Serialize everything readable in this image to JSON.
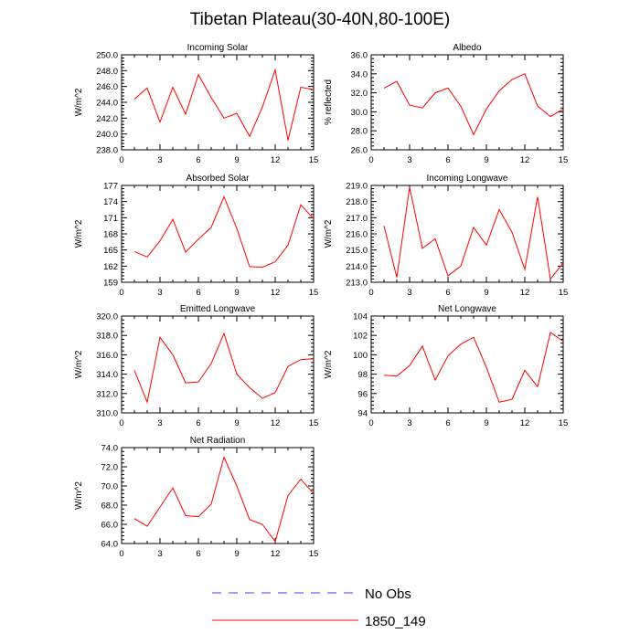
{
  "figure": {
    "title": "Tibetan Plateau(30-40N,80-100E)",
    "line_color": "#ff0000",
    "obs_color": "#3b3bff",
    "legend": [
      {
        "label": "No Obs",
        "style": "dashed"
      },
      {
        "label": "1850_149",
        "style": "solid"
      }
    ]
  },
  "chart_data": [
    {
      "type": "line",
      "title": "Incoming Solar",
      "xlabel": "",
      "ylabel": "W/m^2",
      "xlim": [
        0,
        15
      ],
      "ylim": [
        238,
        250
      ],
      "xticks": [
        0,
        3,
        6,
        9,
        12,
        15
      ],
      "xtick_labels": [
        "0",
        "3",
        "6",
        "9",
        "12",
        "15"
      ],
      "yticks": [
        238,
        240,
        242,
        244,
        246,
        248,
        250
      ],
      "ytick_labels": [
        "238.0",
        "240.0",
        "242.0",
        "244.0",
        "246.0",
        "248.0",
        "250.0"
      ],
      "series": [
        {
          "name": "1850_149",
          "x": [
            1,
            2,
            3,
            4,
            5,
            6,
            7,
            8,
            9,
            10,
            11,
            12,
            13,
            14,
            15
          ],
          "y": [
            244.4,
            245.8,
            241.5,
            245.9,
            242.5,
            247.5,
            244.6,
            242.0,
            242.6,
            239.7,
            243.4,
            248.1,
            239.2,
            245.9,
            245.6
          ]
        }
      ]
    },
    {
      "type": "line",
      "title": "Albedo",
      "xlabel": "",
      "ylabel": "% reflected",
      "xlim": [
        0,
        15
      ],
      "ylim": [
        26,
        36
      ],
      "xticks": [
        0,
        3,
        6,
        9,
        12,
        15
      ],
      "xtick_labels": [
        "0",
        "3",
        "6",
        "9",
        "12",
        "15"
      ],
      "yticks": [
        26,
        28,
        30,
        32,
        34,
        36
      ],
      "ytick_labels": [
        "26.0",
        "28.0",
        "30.0",
        "32.0",
        "34.0",
        "36.0"
      ],
      "series": [
        {
          "name": "1850_149",
          "x": [
            1,
            2,
            3,
            4,
            5,
            6,
            7,
            8,
            9,
            10,
            11,
            12,
            13,
            14,
            15
          ],
          "y": [
            32.5,
            33.2,
            30.7,
            30.4,
            32.0,
            32.5,
            30.6,
            27.6,
            30.3,
            32.2,
            33.4,
            34.0,
            30.6,
            29.5,
            30.3
          ]
        }
      ]
    },
    {
      "type": "line",
      "title": "Absorbed Solar",
      "xlabel": "",
      "ylabel": "W/m^2",
      "xlim": [
        0,
        15
      ],
      "ylim": [
        159,
        177
      ],
      "xticks": [
        0,
        3,
        6,
        9,
        12,
        15
      ],
      "xtick_labels": [
        "0",
        "3",
        "6",
        "9",
        "12",
        "15"
      ],
      "yticks": [
        159,
        162,
        165,
        168,
        171,
        174,
        177
      ],
      "ytick_labels": [
        "159",
        "162",
        "165",
        "168",
        "171",
        "174",
        "177"
      ],
      "series": [
        {
          "name": "1850_149",
          "x": [
            1,
            2,
            3,
            4,
            5,
            6,
            7,
            8,
            9,
            10,
            11,
            12,
            13,
            14,
            15
          ],
          "y": [
            164.7,
            163.7,
            166.7,
            170.7,
            164.6,
            167.0,
            169.2,
            174.9,
            169.0,
            161.9,
            161.8,
            162.8,
            165.9,
            173.4,
            170.8
          ]
        }
      ]
    },
    {
      "type": "line",
      "title": "Incoming Longwave",
      "xlabel": "",
      "ylabel": "W/m^2",
      "xlim": [
        0,
        15
      ],
      "ylim": [
        213,
        219
      ],
      "xticks": [
        0,
        3,
        6,
        9,
        12,
        15
      ],
      "xtick_labels": [
        "0",
        "3",
        "6",
        "9",
        "12",
        "15"
      ],
      "yticks": [
        213,
        214,
        215,
        216,
        217,
        218,
        219
      ],
      "ytick_labels": [
        "213.0",
        "214.0",
        "215.0",
        "216.0",
        "217.0",
        "218.0",
        "219.0"
      ],
      "series": [
        {
          "name": "1850_149",
          "x": [
            1,
            2,
            3,
            4,
            5,
            6,
            7,
            8,
            9,
            10,
            11,
            12,
            13,
            14,
            15
          ],
          "y": [
            216.5,
            213.3,
            218.9,
            215.1,
            215.7,
            213.4,
            214.0,
            216.4,
            215.3,
            217.5,
            216.1,
            213.8,
            218.3,
            213.2,
            214.2
          ]
        }
      ]
    },
    {
      "type": "line",
      "title": "Emitted Longwave",
      "xlabel": "",
      "ylabel": "W/m^2",
      "xlim": [
        0,
        15
      ],
      "ylim": [
        310,
        320
      ],
      "xticks": [
        0,
        3,
        6,
        9,
        12,
        15
      ],
      "xtick_labels": [
        "0",
        "3",
        "6",
        "9",
        "12",
        "15"
      ],
      "yticks": [
        310,
        312,
        314,
        316,
        318,
        320
      ],
      "ytick_labels": [
        "310.0",
        "312.0",
        "314.0",
        "316.0",
        "318.0",
        "320.0"
      ],
      "series": [
        {
          "name": "1850_149",
          "x": [
            1,
            2,
            3,
            4,
            5,
            6,
            7,
            8,
            9,
            10,
            11,
            12,
            13,
            14,
            15
          ],
          "y": [
            314.4,
            311.1,
            317.8,
            316.0,
            313.1,
            313.2,
            315.1,
            318.2,
            314.0,
            312.6,
            311.5,
            312.1,
            314.8,
            315.5,
            315.6
          ]
        }
      ]
    },
    {
      "type": "line",
      "title": "Net Longwave",
      "xlabel": "",
      "ylabel": "W/m^2",
      "xlim": [
        0,
        15
      ],
      "ylim": [
        94,
        104
      ],
      "xticks": [
        0,
        3,
        6,
        9,
        12,
        15
      ],
      "xtick_labels": [
        "0",
        "3",
        "6",
        "9",
        "12",
        "15"
      ],
      "yticks": [
        94,
        96,
        98,
        100,
        102,
        104
      ],
      "ytick_labels": [
        "94",
        "96",
        "98",
        "100",
        "102",
        "104"
      ],
      "series": [
        {
          "name": "1850_149",
          "x": [
            1,
            2,
            3,
            4,
            5,
            6,
            7,
            8,
            9,
            10,
            11,
            12,
            13,
            14,
            15
          ],
          "y": [
            97.9,
            97.8,
            98.9,
            100.9,
            97.4,
            99.9,
            101.1,
            101.8,
            98.7,
            95.1,
            95.4,
            98.4,
            96.7,
            102.3,
            101.4
          ]
        }
      ]
    },
    {
      "type": "line",
      "title": "Net Radiation",
      "xlabel": "",
      "ylabel": "W/m^2",
      "xlim": [
        0,
        15
      ],
      "ylim": [
        64,
        74
      ],
      "xticks": [
        0,
        3,
        6,
        9,
        12,
        15
      ],
      "xtick_labels": [
        "0",
        "3",
        "6",
        "9",
        "12",
        "15"
      ],
      "yticks": [
        64,
        66,
        68,
        70,
        72,
        74
      ],
      "ytick_labels": [
        "64.0",
        "66.0",
        "68.0",
        "70.0",
        "72.0",
        "74.0"
      ],
      "series": [
        {
          "name": "1850_149",
          "x": [
            1,
            2,
            3,
            4,
            5,
            6,
            7,
            8,
            9,
            10,
            11,
            12,
            13,
            14,
            15
          ],
          "y": [
            66.6,
            65.8,
            67.8,
            69.8,
            66.9,
            66.8,
            68.1,
            73.0,
            70.0,
            66.5,
            66.0,
            64.2,
            69.0,
            70.7,
            69.2
          ]
        }
      ]
    }
  ]
}
